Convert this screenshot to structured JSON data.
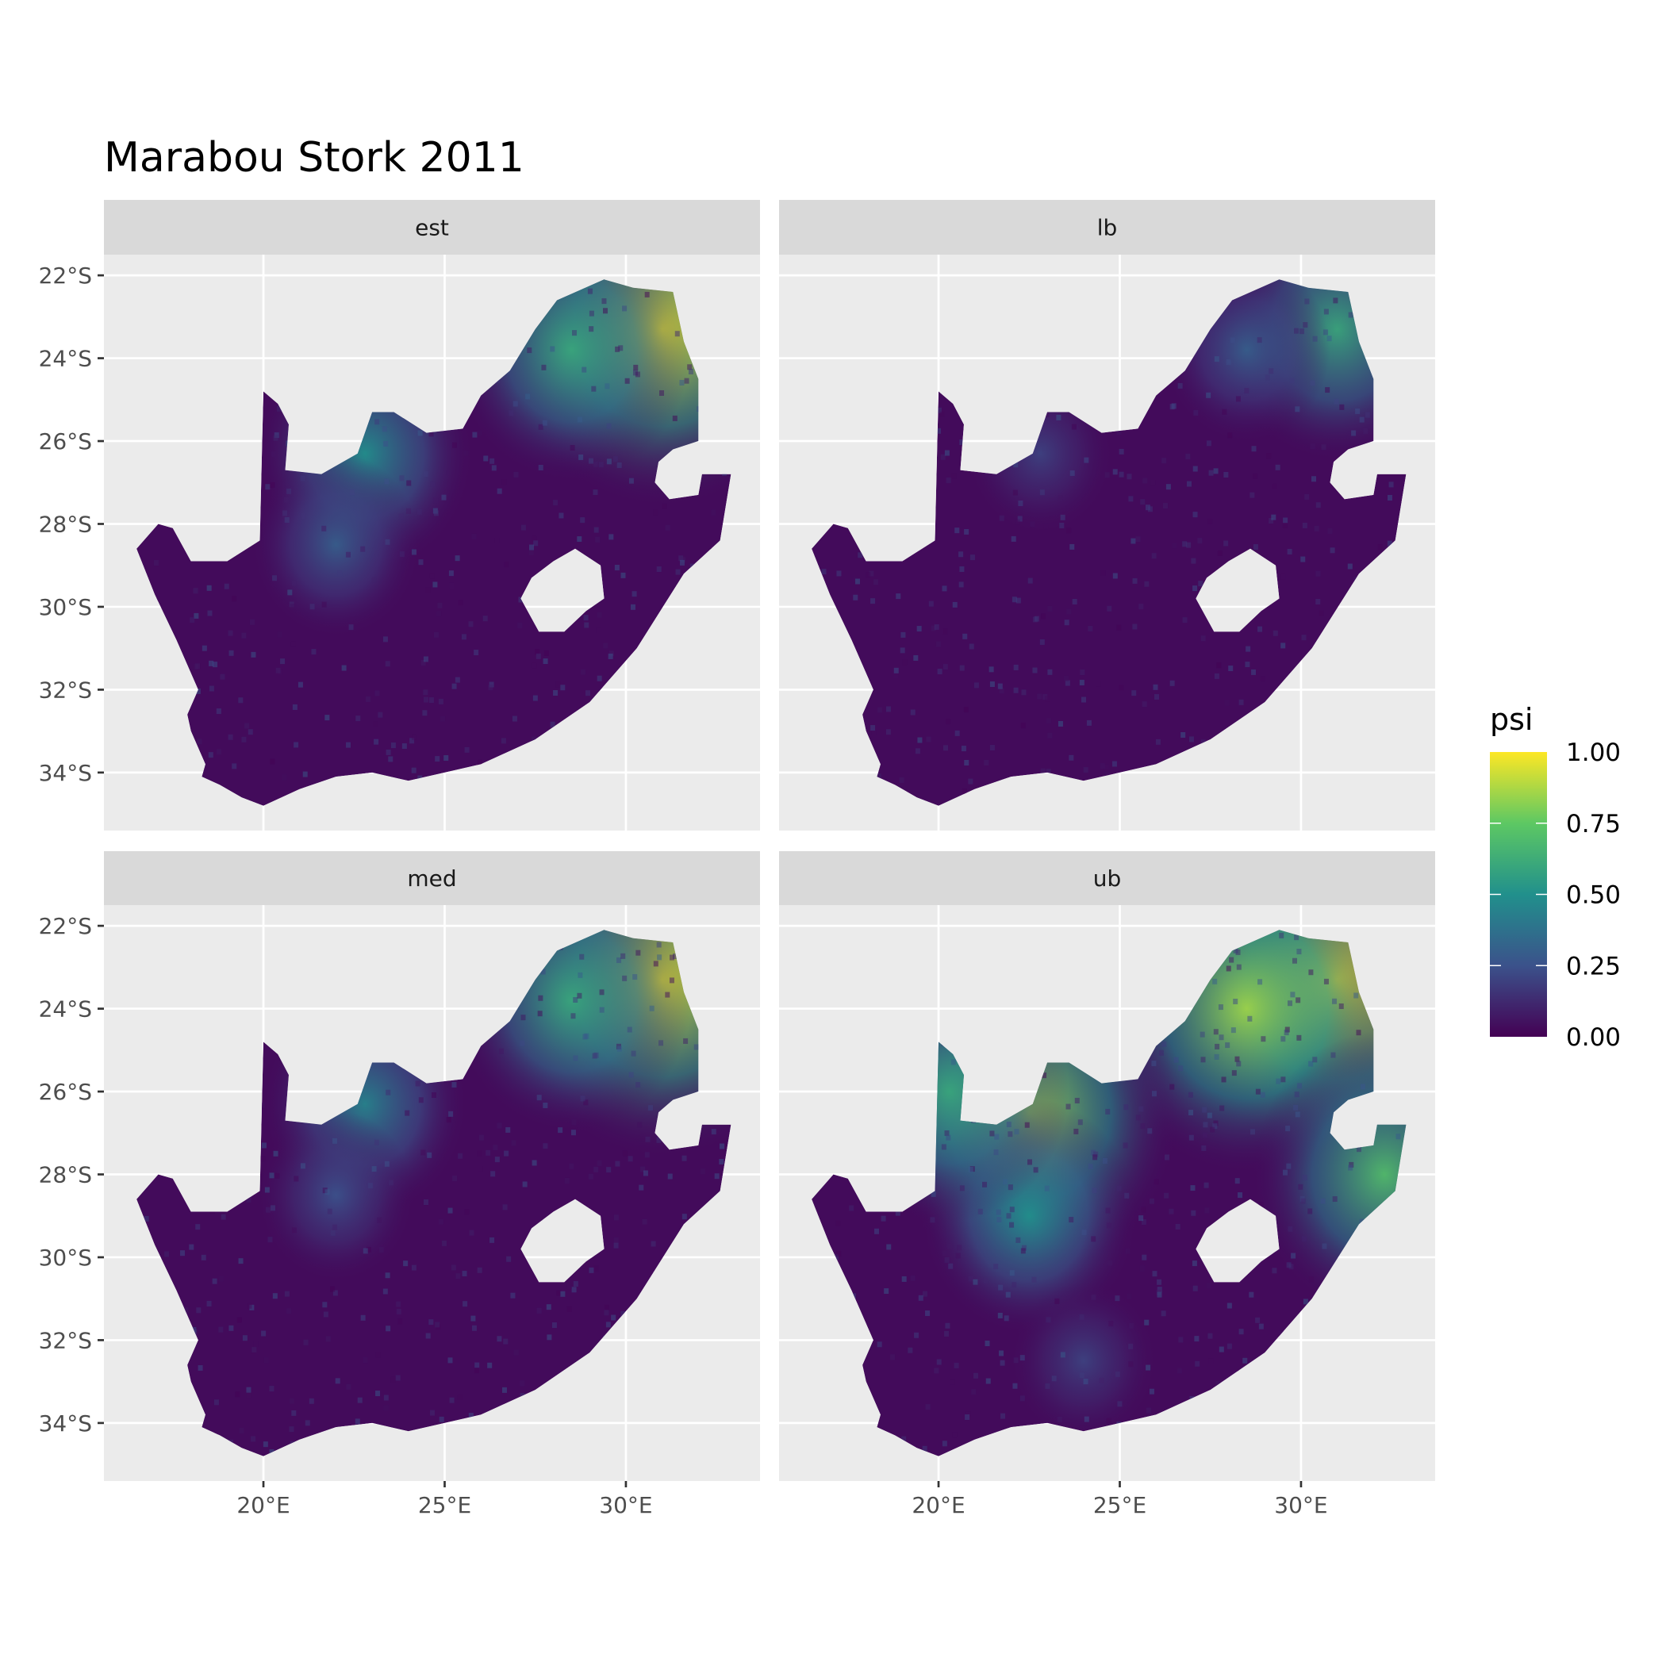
{
  "chart_data": {
    "type": "heatmap",
    "title": "Marabou Stork 2011",
    "facets": [
      "est",
      "lb",
      "med",
      "ub"
    ],
    "xlabel": "",
    "ylabel": "",
    "x_ticks": [
      20,
      25,
      30
    ],
    "x_tick_labels": [
      "20°E",
      "25°E",
      "30°E"
    ],
    "y_ticks": [
      -22,
      -24,
      -26,
      -28,
      -30,
      -32,
      -34
    ],
    "y_tick_labels": [
      "22°S",
      "24°S",
      "26°S",
      "28°S",
      "30°S",
      "32°S",
      "34°S"
    ],
    "xlim": [
      15.6,
      33.7
    ],
    "ylim": [
      -35.4,
      -21.5
    ],
    "grid": true,
    "legend": {
      "title": "psi",
      "placement": "right",
      "range": [
        0,
        1
      ],
      "ticks": [
        1.0,
        0.75,
        0.5,
        0.25,
        0.0
      ],
      "tick_labels": [
        "1.00",
        "0.75",
        "0.50",
        "0.25",
        "0.00"
      ],
      "colormap": "viridis",
      "colors": [
        "#440154",
        "#3B528B",
        "#21908C",
        "#5DC863",
        "#FDE725"
      ]
    },
    "region_outline": [
      [
        16.5,
        -28.6
      ],
      [
        17.1,
        -28.0
      ],
      [
        17.5,
        -28.1
      ],
      [
        18.0,
        -28.9
      ],
      [
        19.0,
        -28.9
      ],
      [
        19.9,
        -28.4
      ],
      [
        20.0,
        -24.8
      ],
      [
        20.4,
        -25.1
      ],
      [
        20.7,
        -25.6
      ],
      [
        20.6,
        -26.7
      ],
      [
        21.6,
        -26.8
      ],
      [
        22.6,
        -26.3
      ],
      [
        23.0,
        -25.3
      ],
      [
        23.6,
        -25.3
      ],
      [
        24.5,
        -25.8
      ],
      [
        25.5,
        -25.7
      ],
      [
        26.0,
        -24.9
      ],
      [
        26.8,
        -24.3
      ],
      [
        27.5,
        -23.3
      ],
      [
        28.1,
        -22.6
      ],
      [
        29.4,
        -22.1
      ],
      [
        30.2,
        -22.3
      ],
      [
        31.3,
        -22.4
      ],
      [
        31.6,
        -23.6
      ],
      [
        32.0,
        -24.5
      ],
      [
        32.0,
        -26.0
      ],
      [
        31.3,
        -26.2
      ],
      [
        30.9,
        -26.5
      ],
      [
        30.8,
        -27.0
      ],
      [
        31.2,
        -27.4
      ],
      [
        32.0,
        -27.3
      ],
      [
        32.1,
        -26.8
      ],
      [
        32.9,
        -26.8
      ],
      [
        32.6,
        -28.4
      ],
      [
        31.6,
        -29.2
      ],
      [
        30.3,
        -31.0
      ],
      [
        29.0,
        -32.3
      ],
      [
        27.5,
        -33.2
      ],
      [
        26.0,
        -33.8
      ],
      [
        25.0,
        -34.0
      ],
      [
        24.0,
        -34.2
      ],
      [
        23.0,
        -34.0
      ],
      [
        22.0,
        -34.1
      ],
      [
        21.0,
        -34.4
      ],
      [
        20.0,
        -34.8
      ],
      [
        19.4,
        -34.6
      ],
      [
        18.8,
        -34.3
      ],
      [
        18.3,
        -34.1
      ],
      [
        18.4,
        -33.8
      ],
      [
        18.0,
        -33.0
      ],
      [
        17.9,
        -32.6
      ],
      [
        18.2,
        -32.0
      ],
      [
        17.6,
        -30.8
      ],
      [
        17.0,
        -29.7
      ]
    ],
    "hole_outline": [
      [
        28.6,
        -28.6
      ],
      [
        29.3,
        -29.0
      ],
      [
        29.4,
        -29.8
      ],
      [
        28.9,
        -30.1
      ],
      [
        28.3,
        -30.6
      ],
      [
        27.6,
        -30.6
      ],
      [
        27.1,
        -29.8
      ],
      [
        27.4,
        -29.3
      ],
      [
        28.0,
        -28.9
      ]
    ],
    "hotspots": {
      "est": [
        {
          "lon": 31.0,
          "lat": -23.3,
          "psi": 0.95
        },
        {
          "lon": 28.5,
          "lat": -23.8,
          "psi": 0.6
        },
        {
          "lon": 22.8,
          "lat": -26.3,
          "psi": 0.5
        },
        {
          "lon": 22.0,
          "lat": -28.5,
          "psi": 0.3
        }
      ],
      "lb": [
        {
          "lon": 31.0,
          "lat": -23.3,
          "psi": 0.6
        },
        {
          "lon": 28.5,
          "lat": -23.8,
          "psi": 0.3
        },
        {
          "lon": 22.8,
          "lat": -26.3,
          "psi": 0.2
        }
      ],
      "med": [
        {
          "lon": 31.0,
          "lat": -23.3,
          "psi": 0.95
        },
        {
          "lon": 28.5,
          "lat": -23.8,
          "psi": 0.6
        },
        {
          "lon": 22.8,
          "lat": -26.3,
          "psi": 0.45
        },
        {
          "lon": 22.0,
          "lat": -28.5,
          "psi": 0.25
        }
      ],
      "ub": [
        {
          "lon": 31.0,
          "lat": -23.3,
          "psi": 1.0
        },
        {
          "lon": 28.5,
          "lat": -24.0,
          "psi": 0.85
        },
        {
          "lon": 22.5,
          "lat": -26.5,
          "psi": 0.85
        },
        {
          "lon": 22.5,
          "lat": -29.0,
          "psi": 0.5
        },
        {
          "lon": 20.3,
          "lat": -26.0,
          "psi": 0.6
        },
        {
          "lon": 32.3,
          "lat": -28.0,
          "psi": 0.7
        },
        {
          "lon": 24.0,
          "lat": -32.5,
          "psi": 0.2
        }
      ]
    }
  }
}
